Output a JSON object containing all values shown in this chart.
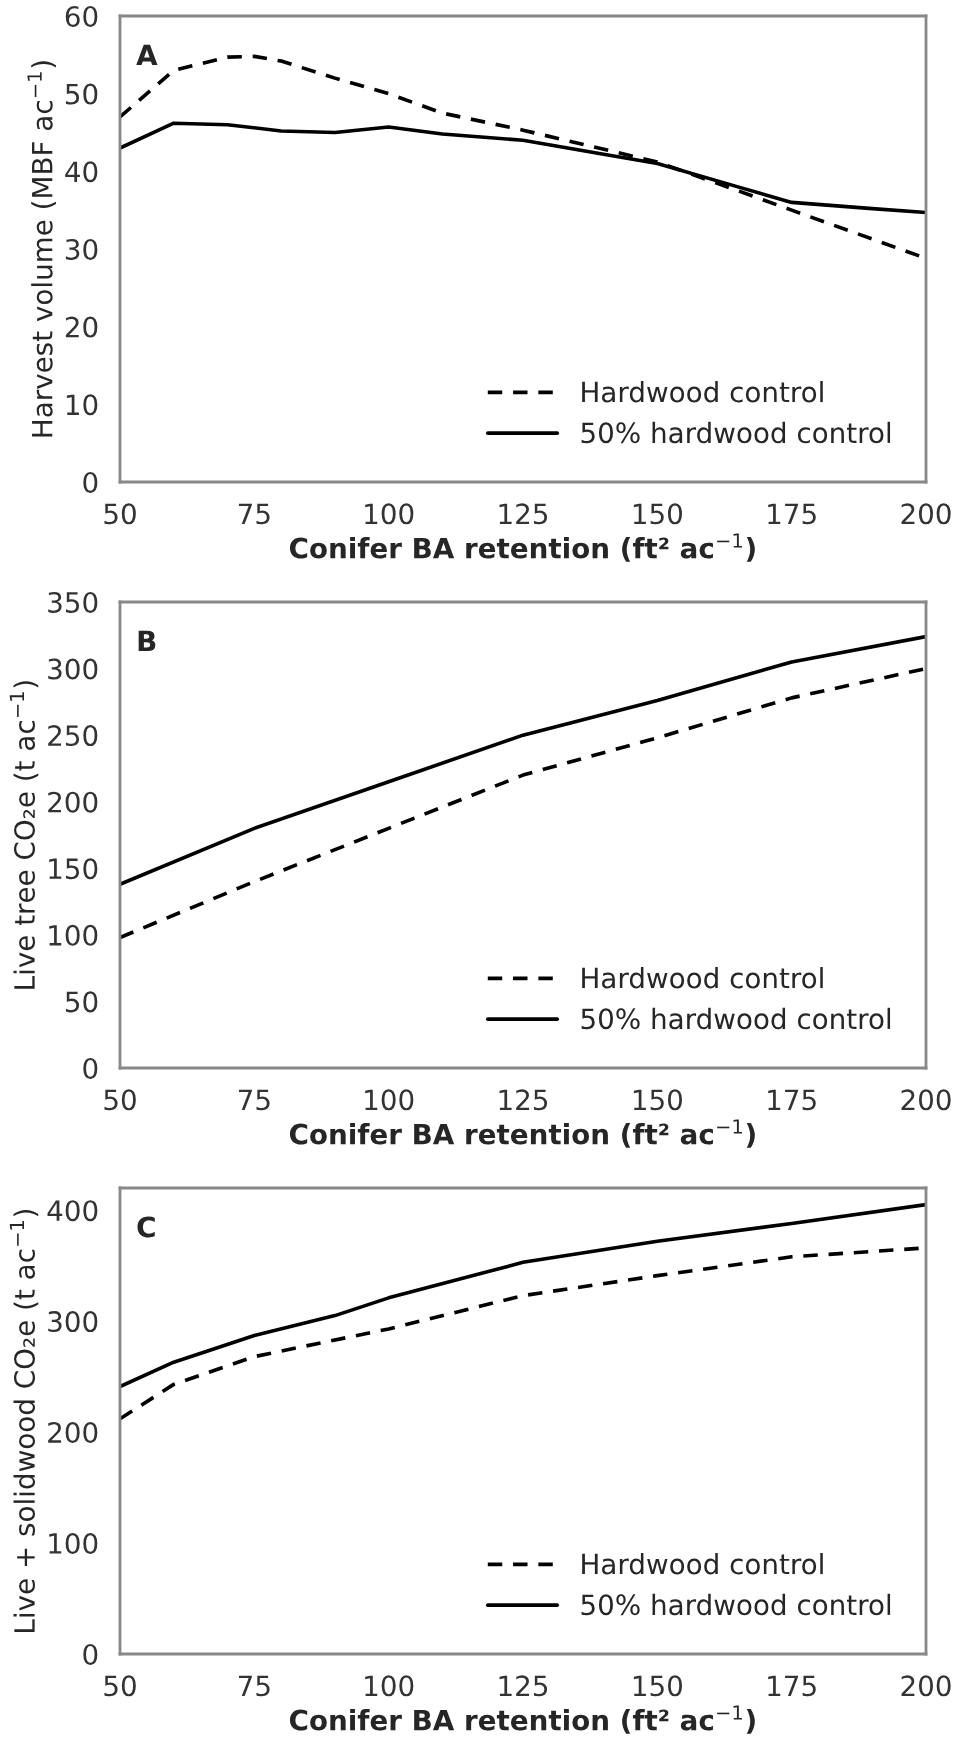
{
  "chart_data": [
    {
      "type": "line",
      "xlabel": "Conifer BA retention (ft² ac$^{−1}$)",
      "ylabel": "Harvest volume (MBF ac$^{−1}$)",
      "annotations": [
        "A"
      ],
      "xlim": [
        50,
        200
      ],
      "xticks": [
        50,
        75,
        100,
        125,
        150,
        175,
        200
      ],
      "ylim": [
        0,
        60
      ],
      "yticks": [
        0,
        10,
        20,
        30,
        40,
        50,
        60
      ],
      "grid": false,
      "legend": "bottom right",
      "series": [
        {
          "name": "Hardwood control",
          "color": "#000000",
          "line_style": "dashed",
          "x": [
            50,
            60,
            70,
            75,
            80,
            90,
            100,
            110,
            125,
            150,
            165,
            175,
            200
          ],
          "values": [
            47,
            53,
            54.7,
            54.8,
            54.2,
            52,
            50,
            47.5,
            45.3,
            41.2,
            37.5,
            35,
            28.8
          ]
        },
        {
          "name": "50% hardwood control",
          "color": "#000000",
          "line_style": "solid",
          "x": [
            50,
            60,
            70,
            80,
            90,
            100,
            110,
            125,
            140,
            150,
            165,
            175,
            190,
            200
          ],
          "values": [
            43,
            46.2,
            46,
            45.2,
            45,
            45.7,
            44.8,
            44,
            42.2,
            41,
            38,
            36,
            35.2,
            34.7
          ]
        }
      ]
    },
    {
      "type": "line",
      "xlabel": "Conifer BA retention (ft² ac$^{−1}$)",
      "ylabel": "Live tree CO₂e (t ac$^{−1}$)",
      "annotations": [
        "B"
      ],
      "xlim": [
        50,
        200
      ],
      "xticks": [
        50,
        75,
        100,
        125,
        150,
        175,
        200
      ],
      "ylim": [
        0,
        350
      ],
      "yticks": [
        0,
        50,
        100,
        150,
        200,
        250,
        300,
        350
      ],
      "grid": false,
      "legend": "bottom right",
      "series": [
        {
          "name": "Hardwood control",
          "color": "#000000",
          "line_style": "dashed",
          "x": [
            50,
            75,
            100,
            125,
            150,
            175,
            200
          ],
          "values": [
            98,
            140,
            180,
            220,
            248,
            278,
            300
          ]
        },
        {
          "name": "50% hardwood control",
          "color": "#000000",
          "line_style": "solid",
          "x": [
            50,
            75,
            100,
            125,
            150,
            175,
            200
          ],
          "values": [
            138,
            180,
            215,
            250,
            276,
            305,
            324
          ]
        }
      ]
    },
    {
      "type": "line",
      "xlabel": "Conifer BA retention (ft² ac$^{−1}$)",
      "ylabel": "Live + solidwood CO₂e (t ac$^{−1}$)",
      "annotations": [
        "C"
      ],
      "xlim": [
        50,
        200
      ],
      "xticks": [
        50,
        75,
        100,
        125,
        150,
        175,
        200
      ],
      "ylim": [
        0,
        420
      ],
      "yticks": [
        0,
        100,
        200,
        300,
        400
      ],
      "grid": false,
      "legend": "bottom right",
      "series": [
        {
          "name": "Hardwood control",
          "color": "#000000",
          "line_style": "dashed",
          "x": [
            50,
            60,
            75,
            100,
            125,
            150,
            175,
            200
          ],
          "values": [
            212,
            243,
            268,
            293,
            323,
            341,
            358,
            366
          ]
        },
        {
          "name": "50% hardwood control",
          "color": "#000000",
          "line_style": "solid",
          "x": [
            50,
            60,
            75,
            90,
            100,
            125,
            150,
            175,
            200
          ],
          "values": [
            241,
            263,
            287,
            305,
            321,
            353,
            372,
            388,
            405
          ]
        }
      ]
    }
  ]
}
